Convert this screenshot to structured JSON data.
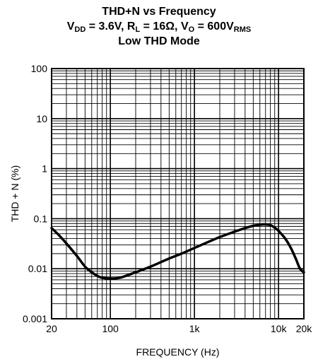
{
  "chart_data": {
    "type": "line",
    "title": "THD+N vs Frequency",
    "subtitle_parts": {
      "vdd_label": "V",
      "vdd_sub": "DD",
      "vdd_value": " = 3.6V, ",
      "rl_label": "R",
      "rl_sub": "L",
      "rl_value": " = 16Ω, ",
      "vo_label": "V",
      "vo_sub": "O",
      "vo_value": " = 600V",
      "vo_unit_sub": "RMS"
    },
    "subtitle2": "Low THD Mode",
    "xlabel": "FREQUENCY (Hz)",
    "ylabel": "THD + N (%)",
    "xscale": "log",
    "yscale": "log",
    "xlim": [
      20,
      20000
    ],
    "ylim": [
      0.001,
      100
    ],
    "grid": true,
    "x_ticks": [
      {
        "value": 20,
        "label": "20"
      },
      {
        "value": 100,
        "label": "100"
      },
      {
        "value": 1000,
        "label": "1k"
      },
      {
        "value": 10000,
        "label": "10k"
      },
      {
        "value": 20000,
        "label": "20k"
      }
    ],
    "y_ticks": [
      {
        "value": 100,
        "label": "100"
      },
      {
        "value": 10,
        "label": "10"
      },
      {
        "value": 1,
        "label": "1"
      },
      {
        "value": 0.1,
        "label": "0.1"
      },
      {
        "value": 0.01,
        "label": "0.01"
      },
      {
        "value": 0.001,
        "label": "0.001"
      }
    ],
    "series": [
      {
        "x": [
          20,
          25,
          30,
          40,
          50,
          60,
          70,
          80,
          100,
          130,
          200,
          300,
          500,
          700,
          1000,
          1500,
          2000,
          3000,
          4000,
          5000,
          6000,
          7000,
          8000,
          9000,
          10000,
          12000,
          14000,
          16000,
          18000,
          20000
        ],
        "y": [
          0.065,
          0.045,
          0.032,
          0.018,
          0.011,
          0.0085,
          0.0072,
          0.0066,
          0.0064,
          0.0066,
          0.0085,
          0.011,
          0.016,
          0.02,
          0.026,
          0.035,
          0.043,
          0.055,
          0.065,
          0.072,
          0.076,
          0.077,
          0.074,
          0.066,
          0.057,
          0.04,
          0.026,
          0.016,
          0.01,
          0.0085
        ]
      }
    ]
  }
}
